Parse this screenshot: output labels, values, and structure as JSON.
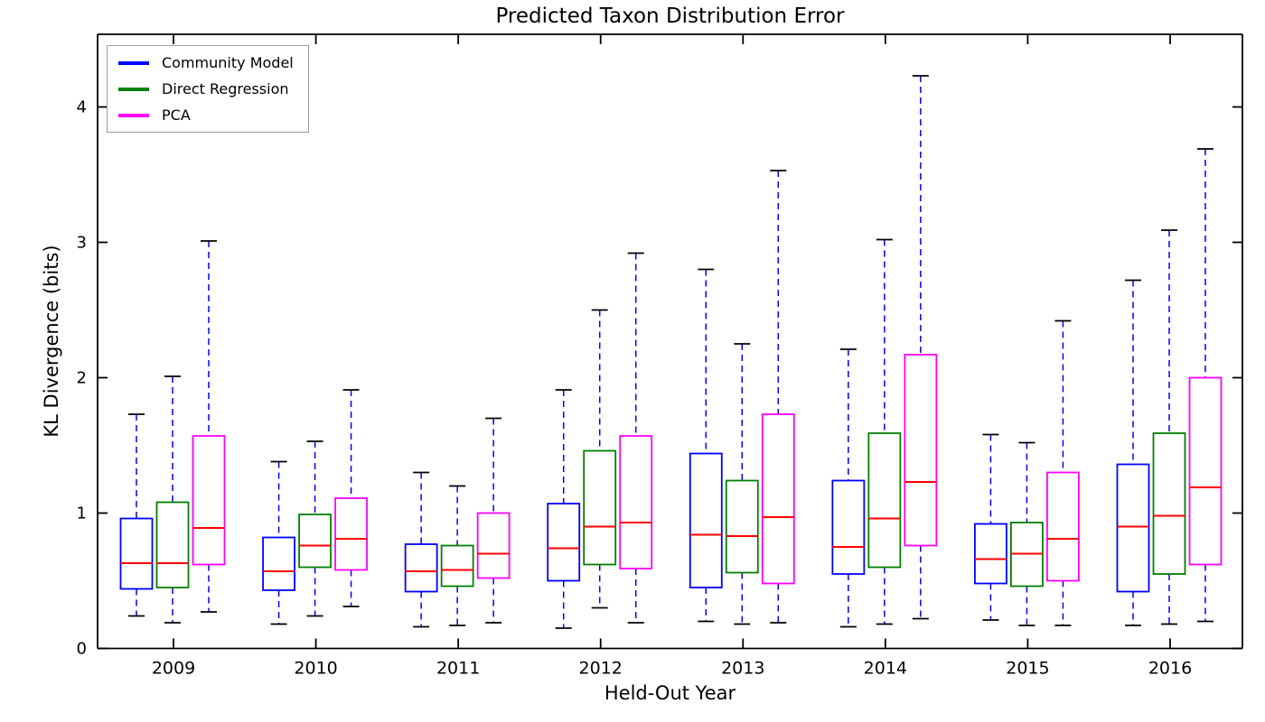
{
  "chart_data": {
    "type": "boxplot",
    "title": "Predicted Taxon Distribution Error",
    "xlabel": "Held-Out Year",
    "ylabel": "KL Divergence (bits)",
    "categories": [
      "2009",
      "2010",
      "2011",
      "2012",
      "2013",
      "2014",
      "2015",
      "2016"
    ],
    "ylim": [
      0,
      4.54
    ],
    "yticks": [
      0,
      1,
      2,
      3,
      4
    ],
    "yticklabels": [
      "0",
      "1",
      "2",
      "3",
      "4"
    ],
    "grid": false,
    "legend_position": "upper-left",
    "box_stat_order": [
      "whisker_low",
      "q1",
      "median",
      "q3",
      "whisker_high"
    ],
    "series": [
      {
        "name": "Community Model",
        "color": "#0000ff",
        "boxes": [
          [
            0.24,
            0.44,
            0.63,
            0.96,
            1.73
          ],
          [
            0.18,
            0.43,
            0.57,
            0.82,
            1.38
          ],
          [
            0.16,
            0.42,
            0.57,
            0.77,
            1.3
          ],
          [
            0.15,
            0.5,
            0.74,
            1.07,
            1.91
          ],
          [
            0.2,
            0.45,
            0.84,
            1.44,
            2.8
          ],
          [
            0.16,
            0.55,
            0.75,
            1.24,
            2.21
          ],
          [
            0.21,
            0.48,
            0.66,
            0.92,
            1.58
          ],
          [
            0.17,
            0.42,
            0.9,
            1.36,
            2.72
          ]
        ]
      },
      {
        "name": "Direct Regression",
        "color": "#008000",
        "boxes": [
          [
            0.19,
            0.45,
            0.63,
            1.08,
            2.01
          ],
          [
            0.24,
            0.6,
            0.76,
            0.99,
            1.53
          ],
          [
            0.17,
            0.46,
            0.58,
            0.76,
            1.2
          ],
          [
            0.3,
            0.62,
            0.9,
            1.46,
            2.5
          ],
          [
            0.18,
            0.56,
            0.83,
            1.24,
            2.25
          ],
          [
            0.18,
            0.6,
            0.96,
            1.59,
            3.02
          ],
          [
            0.17,
            0.46,
            0.7,
            0.93,
            1.52
          ],
          [
            0.18,
            0.55,
            0.98,
            1.59,
            3.09
          ]
        ]
      },
      {
        "name": "PCA",
        "color": "#ff00ff",
        "boxes": [
          [
            0.27,
            0.62,
            0.89,
            1.57,
            3.01
          ],
          [
            0.31,
            0.58,
            0.81,
            1.11,
            1.91
          ],
          [
            0.19,
            0.52,
            0.7,
            1.0,
            1.7
          ],
          [
            0.19,
            0.59,
            0.93,
            1.57,
            2.92
          ],
          [
            0.19,
            0.48,
            0.97,
            1.73,
            3.53
          ],
          [
            0.22,
            0.76,
            1.23,
            2.17,
            4.23
          ],
          [
            0.17,
            0.5,
            0.81,
            1.3,
            2.42
          ],
          [
            0.2,
            0.62,
            1.19,
            2.0,
            3.69
          ]
        ]
      }
    ],
    "style": {
      "median_color": "#ff0000",
      "whisker_color": "#0000ff",
      "cap_color": "#000000",
      "spine_color": "#000000",
      "whisker_dashed": true,
      "box_fill": "none"
    }
  }
}
